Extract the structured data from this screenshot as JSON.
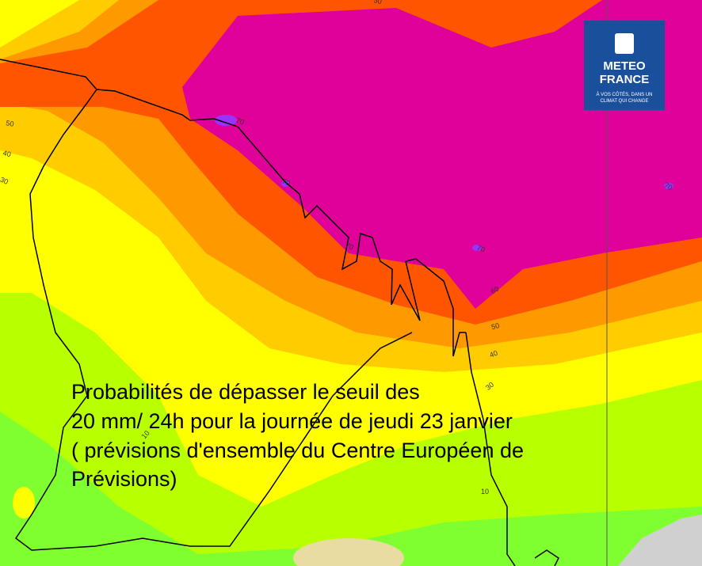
{
  "caption": {
    "lines": [
      "Probabilités de dépasser le seuil des",
      "20 mm/ 24h pour la journée de jeudi 23 janvier",
      "( prévisions d'ensemble du Centre Européen de",
      "Prévisions)"
    ]
  },
  "logo": {
    "name_lines": [
      "METEO",
      "FRANCE"
    ],
    "tagline_lines": [
      "À VOS CÔTÉS, DANS UN",
      "CLIMAT QUI CHANGE"
    ]
  },
  "contour_labels": [
    "50",
    "50",
    "40",
    "30",
    "70",
    "70",
    "70",
    "70",
    "70",
    "60",
    "50",
    "40",
    "30",
    "10",
    "10"
  ]
}
